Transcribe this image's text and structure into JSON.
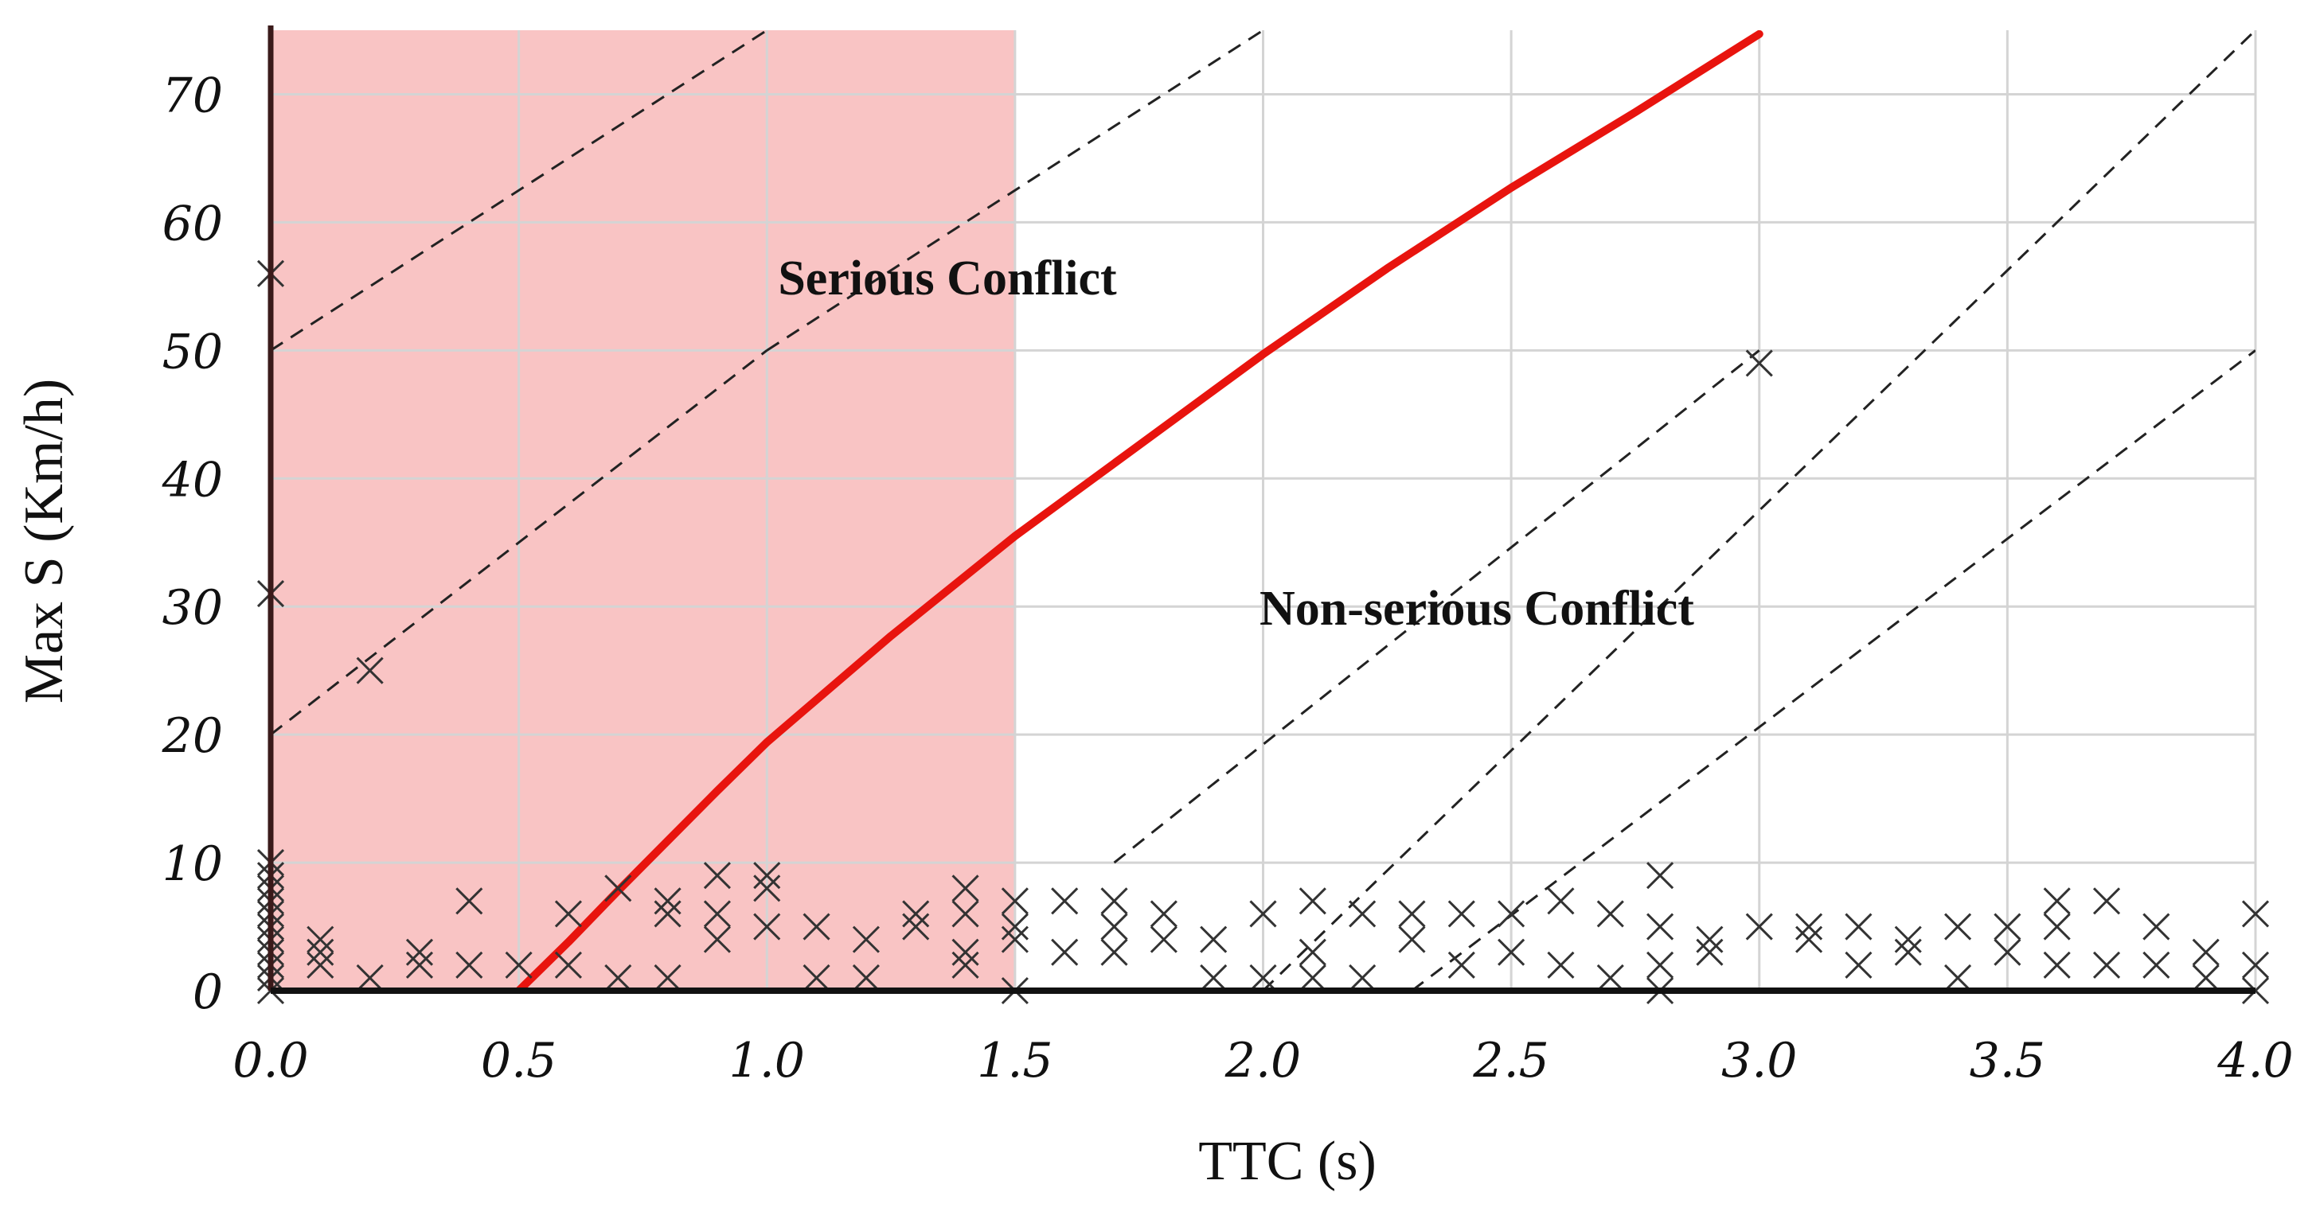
{
  "chart_data": {
    "type": "scatter",
    "title": "",
    "xlabel": "TTC (s)",
    "ylabel": "Max S (Km/h)",
    "xlim": [
      0,
      4
    ],
    "ylim": [
      0,
      75
    ],
    "x_ticks": [
      "0.0",
      "0.5",
      "1.0",
      "1.5",
      "2.0",
      "2.5",
      "3.0",
      "3.5",
      "4.0"
    ],
    "y_ticks": [
      "0",
      "10",
      "20",
      "30",
      "40",
      "50",
      "60",
      "70"
    ],
    "grid": true,
    "shaded_region": {
      "label": "Serious Conflict",
      "x_range": [
        0,
        1.5
      ],
      "color": "#f9c4c4"
    },
    "region_labels": [
      "Serious Conflict",
      "Non-serious Conflict"
    ],
    "threshold_curve": {
      "color": "#e8140e",
      "x": [
        0.5,
        0.6,
        0.7,
        0.8,
        0.9,
        1.0,
        1.25,
        1.5,
        1.75,
        2.0,
        2.25,
        2.5,
        2.75,
        3.0
      ],
      "y": [
        0,
        3.8,
        7.8,
        11.7,
        15.6,
        19.4,
        27.7,
        35.5,
        42.6,
        49.7,
        56.4,
        62.7,
        68.6,
        74.7
      ]
    },
    "reference_lines": [
      {
        "x": [
          0.0,
          1.0
        ],
        "y": [
          50,
          75
        ]
      },
      {
        "x": [
          0.0,
          1.0
        ],
        "y": [
          20,
          50
        ]
      },
      {
        "x": [
          1.0,
          2.0
        ],
        "y": [
          50,
          75
        ]
      },
      {
        "x": [
          1.7,
          3.0
        ],
        "y": [
          10,
          50
        ]
      },
      {
        "x": [
          2.0,
          4.0
        ],
        "y": [
          0,
          75
        ]
      },
      {
        "x": [
          2.3,
          4.0
        ],
        "y": [
          0,
          50
        ]
      }
    ],
    "scatter_points": [
      [
        0.0,
        56
      ],
      [
        0.0,
        31
      ],
      [
        0.0,
        10
      ],
      [
        0.0,
        9
      ],
      [
        0.0,
        8
      ],
      [
        0.0,
        7
      ],
      [
        0.0,
        6
      ],
      [
        0.0,
        5
      ],
      [
        0.0,
        4
      ],
      [
        0.0,
        3
      ],
      [
        0.0,
        2
      ],
      [
        0.0,
        1
      ],
      [
        0.0,
        0
      ],
      [
        0.1,
        4
      ],
      [
        0.1,
        3
      ],
      [
        0.1,
        2
      ],
      [
        0.2,
        1
      ],
      [
        0.2,
        25
      ],
      [
        0.3,
        3
      ],
      [
        0.3,
        2
      ],
      [
        0.4,
        7
      ],
      [
        0.4,
        2
      ],
      [
        0.5,
        2
      ],
      [
        0.6,
        6
      ],
      [
        0.6,
        2
      ],
      [
        0.7,
        8
      ],
      [
        0.7,
        1
      ],
      [
        0.8,
        7
      ],
      [
        0.8,
        6
      ],
      [
        0.8,
        1
      ],
      [
        0.9,
        9
      ],
      [
        0.9,
        6
      ],
      [
        0.9,
        4
      ],
      [
        1.0,
        9
      ],
      [
        1.0,
        8
      ],
      [
        1.0,
        5
      ],
      [
        1.1,
        5
      ],
      [
        1.1,
        1
      ],
      [
        1.2,
        4
      ],
      [
        1.2,
        1
      ],
      [
        1.3,
        6
      ],
      [
        1.3,
        5
      ],
      [
        1.4,
        8
      ],
      [
        1.4,
        6
      ],
      [
        1.4,
        3
      ],
      [
        1.4,
        2
      ],
      [
        1.5,
        7
      ],
      [
        1.5,
        5
      ],
      [
        1.5,
        4
      ],
      [
        1.5,
        0
      ],
      [
        1.6,
        7
      ],
      [
        1.6,
        3
      ],
      [
        1.7,
        7
      ],
      [
        1.7,
        5
      ],
      [
        1.7,
        3
      ],
      [
        1.8,
        6
      ],
      [
        1.8,
        4
      ],
      [
        1.9,
        4
      ],
      [
        1.9,
        1
      ],
      [
        2.0,
        6
      ],
      [
        2.0,
        1
      ],
      [
        2.1,
        7
      ],
      [
        2.1,
        3
      ],
      [
        2.1,
        1
      ],
      [
        2.2,
        6
      ],
      [
        2.2,
        1
      ],
      [
        2.3,
        6
      ],
      [
        2.3,
        4
      ],
      [
        2.4,
        6
      ],
      [
        2.4,
        2
      ],
      [
        2.5,
        6
      ],
      [
        2.5,
        3
      ],
      [
        2.6,
        7
      ],
      [
        2.6,
        2
      ],
      [
        2.7,
        6
      ],
      [
        2.7,
        1
      ],
      [
        2.8,
        9
      ],
      [
        2.8,
        5
      ],
      [
        2.8,
        2
      ],
      [
        2.8,
        0
      ],
      [
        2.9,
        4
      ],
      [
        2.9,
        3
      ],
      [
        3.0,
        49
      ],
      [
        3.0,
        5
      ],
      [
        3.1,
        5
      ],
      [
        3.1,
        4
      ],
      [
        3.2,
        5
      ],
      [
        3.2,
        2
      ],
      [
        3.3,
        4
      ],
      [
        3.3,
        3
      ],
      [
        3.4,
        5
      ],
      [
        3.4,
        1
      ],
      [
        3.5,
        5
      ],
      [
        3.5,
        3
      ],
      [
        3.6,
        7
      ],
      [
        3.6,
        5
      ],
      [
        3.6,
        2
      ],
      [
        3.7,
        7
      ],
      [
        3.7,
        2
      ],
      [
        3.8,
        5
      ],
      [
        3.8,
        2
      ],
      [
        3.9,
        3
      ],
      [
        3.9,
        1
      ],
      [
        4.0,
        6
      ],
      [
        4.0,
        2
      ],
      [
        4.0,
        0
      ]
    ]
  }
}
